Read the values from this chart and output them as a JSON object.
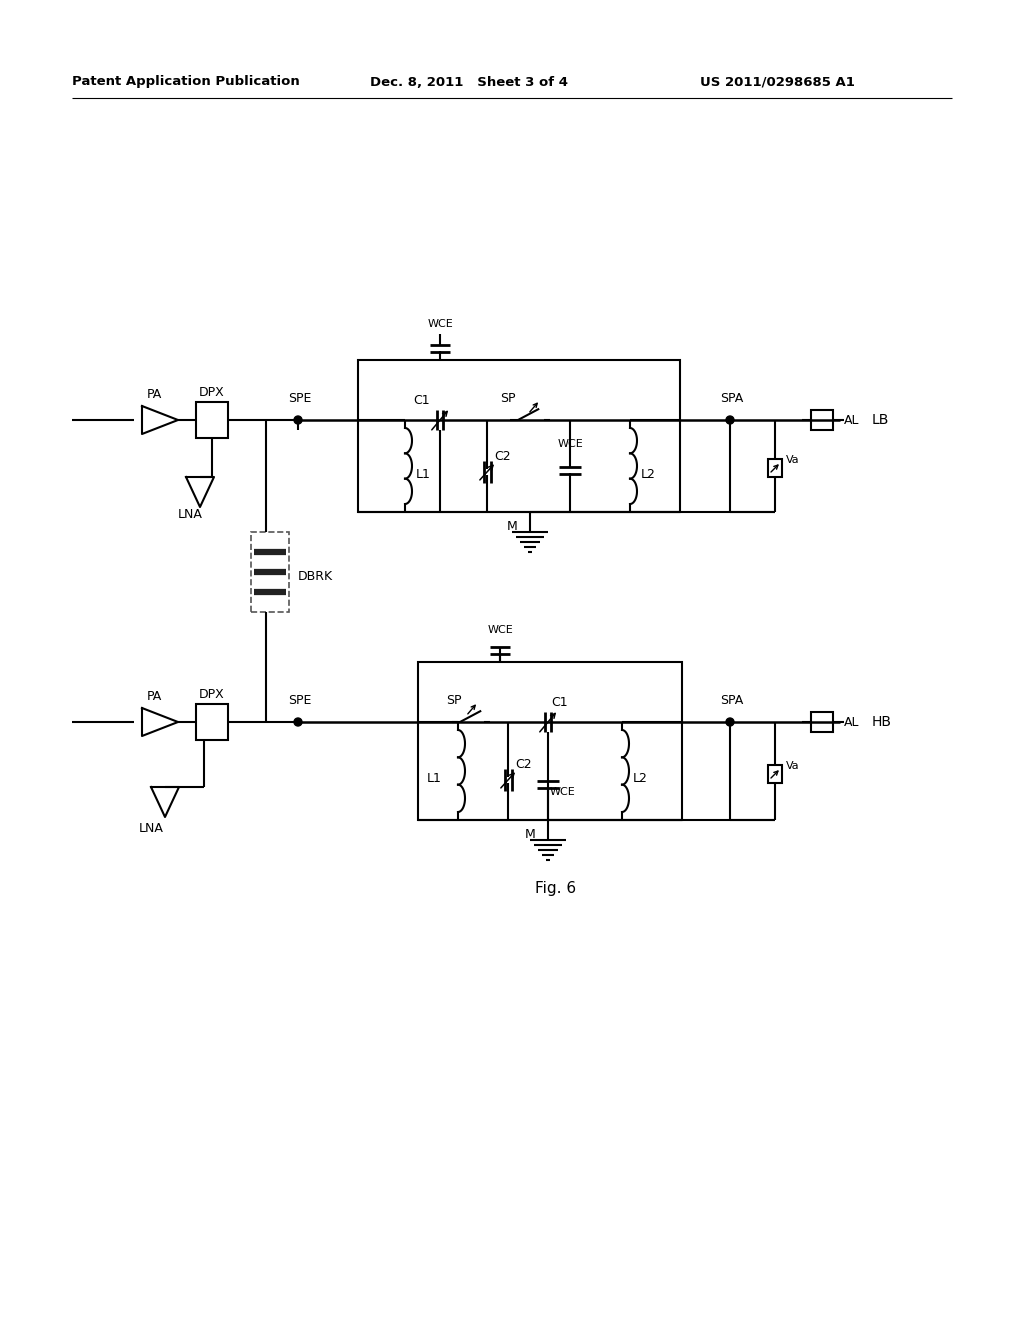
{
  "bg_color": "#ffffff",
  "line_color": "#000000",
  "text_color": "#000000",
  "header_left": "Patent Application Publication",
  "header_mid": "Dec. 8, 2011   Sheet 3 of 4",
  "header_right": "US 2011/0298685 A1",
  "fig_label": "Fig. 6",
  "label_LB": "LB",
  "label_HB": "HB",
  "label_PA": "PA",
  "label_DPX": "DPX",
  "label_SPE": "SPE",
  "label_SPA": "SPA",
  "label_LNA": "LNA",
  "label_DBRK": "DBRK",
  "label_SP": "SP",
  "label_C1": "C1",
  "label_C2": "C2",
  "label_L1": "L1",
  "label_L2": "L2",
  "label_WCE": "WCE",
  "label_M": "M",
  "label_Va": "Va",
  "label_AL": "AL"
}
